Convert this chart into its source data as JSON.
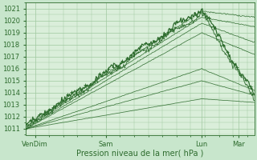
{
  "xlabel": "Pression niveau de la mer( hPa )",
  "ylim": [
    1010.5,
    1021.5
  ],
  "yticks": [
    1011,
    1012,
    1013,
    1014,
    1015,
    1016,
    1017,
    1018,
    1019,
    1020,
    1021
  ],
  "xtick_labels": [
    "VenDim",
    "Sam",
    "Lun",
    "Mar"
  ],
  "xtick_positions": [
    0.04,
    0.35,
    0.77,
    0.93
  ],
  "bg_color": "#c8e6cc",
  "plot_bg_color": "#daeeda",
  "grid_color": "#a0c8a0",
  "line_color": "#2d6b2d",
  "xlabel_fontsize": 7,
  "tick_fontsize": 6
}
